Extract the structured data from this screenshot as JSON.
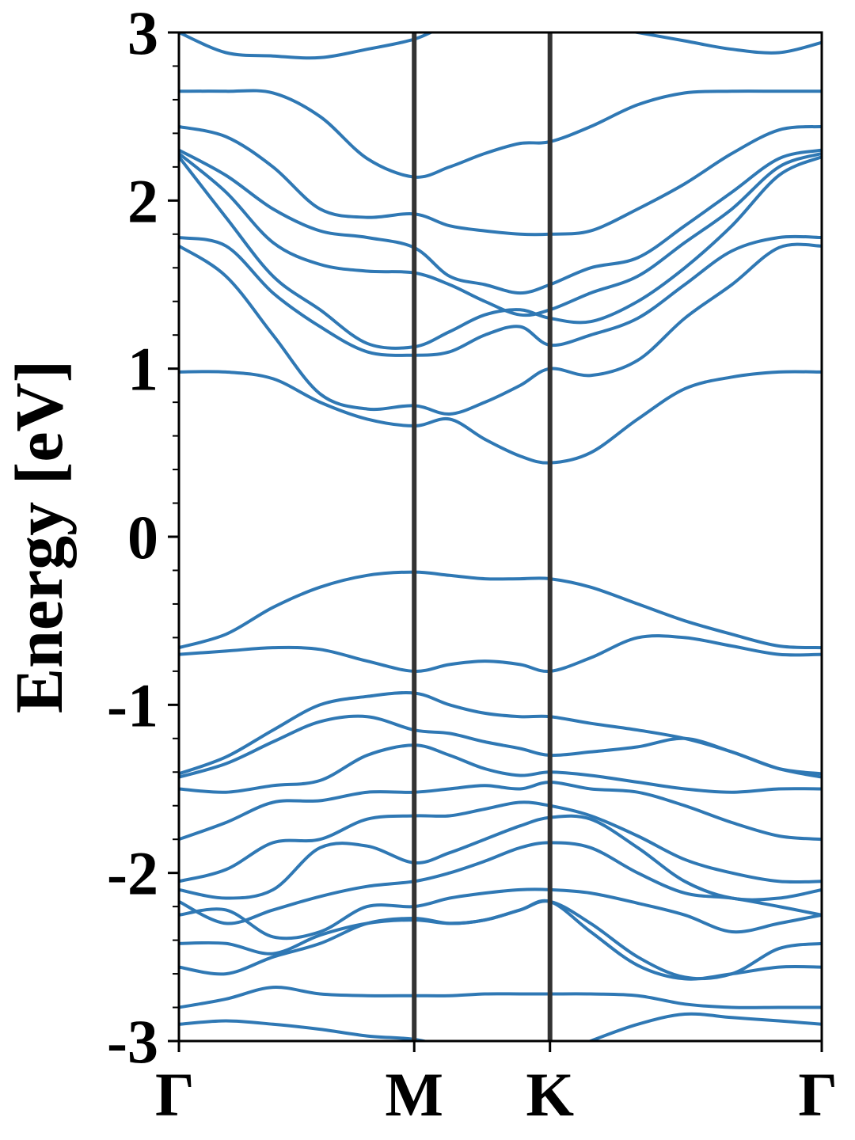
{
  "chart_data": {
    "type": "line",
    "title": "",
    "xlabel": "",
    "ylabel": "Energy [eV]",
    "ylim": [
      -3,
      3
    ],
    "yticks": [
      -3,
      -2,
      -1,
      0,
      1,
      2,
      3
    ],
    "ytick_labels": [
      "-3",
      "-2",
      "-1",
      "0",
      "1",
      "2",
      "3"
    ],
    "x_points": [
      {
        "label": "Γ",
        "x": 0.0
      },
      {
        "label": "M",
        "x": 1.0
      },
      {
        "label": "K",
        "x": 1.577
      },
      {
        "label": "Γ",
        "x": 2.732
      }
    ],
    "line_color": "#2f78b4",
    "vline_color": "#333333",
    "grid": false,
    "legend": "none",
    "x_sample": [
      0,
      0.2,
      0.4,
      0.6,
      0.8,
      1.0,
      1.15,
      1.3,
      1.45,
      1.577,
      1.75,
      1.95,
      2.15,
      2.35,
      2.55,
      2.732
    ],
    "bands": [
      [
        3.0,
        2.88,
        2.86,
        2.85,
        2.9,
        2.96,
        3.05,
        3.1,
        3.1,
        3.1,
        3.05,
        3.0,
        2.95,
        2.9,
        2.88,
        2.94
      ],
      [
        2.65,
        2.65,
        2.64,
        2.5,
        2.25,
        2.14,
        2.2,
        2.28,
        2.34,
        2.35,
        2.44,
        2.57,
        2.64,
        2.65,
        2.65,
        2.65
      ],
      [
        2.44,
        2.38,
        2.2,
        1.95,
        1.9,
        1.92,
        1.85,
        1.82,
        1.8,
        1.8,
        1.82,
        1.95,
        2.1,
        2.28,
        2.42,
        2.44
      ],
      [
        2.3,
        2.15,
        1.95,
        1.82,
        1.78,
        1.72,
        1.55,
        1.5,
        1.45,
        1.5,
        1.6,
        1.66,
        1.85,
        2.05,
        2.25,
        2.3
      ],
      [
        2.28,
        2.05,
        1.75,
        1.62,
        1.58,
        1.57,
        1.5,
        1.4,
        1.32,
        1.35,
        1.45,
        1.55,
        1.75,
        1.95,
        2.2,
        2.28
      ],
      [
        2.26,
        1.9,
        1.55,
        1.35,
        1.15,
        1.13,
        1.22,
        1.32,
        1.35,
        1.3,
        1.28,
        1.4,
        1.6,
        1.85,
        2.15,
        2.26
      ],
      [
        1.78,
        1.73,
        1.45,
        1.25,
        1.1,
        1.08,
        1.1,
        1.2,
        1.25,
        1.14,
        1.2,
        1.3,
        1.5,
        1.7,
        1.78,
        1.78
      ],
      [
        1.73,
        1.55,
        1.2,
        0.85,
        0.76,
        0.78,
        0.73,
        0.8,
        0.9,
        1.0,
        0.96,
        1.05,
        1.3,
        1.5,
        1.72,
        1.73
      ],
      [
        0.98,
        0.98,
        0.94,
        0.8,
        0.7,
        0.66,
        0.7,
        0.58,
        0.48,
        0.44,
        0.5,
        0.7,
        0.88,
        0.95,
        0.98,
        0.98
      ],
      [
        -0.66,
        -0.58,
        -0.42,
        -0.3,
        -0.23,
        -0.21,
        -0.23,
        -0.25,
        -0.25,
        -0.25,
        -0.3,
        -0.4,
        -0.5,
        -0.58,
        -0.65,
        -0.66
      ],
      [
        -0.7,
        -0.68,
        -0.66,
        -0.67,
        -0.74,
        -0.8,
        -0.76,
        -0.74,
        -0.76,
        -0.8,
        -0.72,
        -0.6,
        -0.6,
        -0.65,
        -0.7,
        -0.7
      ],
      [
        -1.41,
        -1.31,
        -1.15,
        -1.0,
        -0.95,
        -0.93,
        -1.0,
        -1.05,
        -1.07,
        -1.07,
        -1.11,
        -1.15,
        -1.2,
        -1.28,
        -1.38,
        -1.41
      ],
      [
        -1.43,
        -1.35,
        -1.22,
        -1.1,
        -1.07,
        -1.15,
        -1.17,
        -1.22,
        -1.26,
        -1.3,
        -1.28,
        -1.25,
        -1.2,
        -1.28,
        -1.38,
        -1.43
      ],
      [
        -1.5,
        -1.52,
        -1.48,
        -1.45,
        -1.3,
        -1.24,
        -1.3,
        -1.38,
        -1.42,
        -1.4,
        -1.42,
        -1.46,
        -1.5,
        -1.52,
        -1.5,
        -1.5
      ],
      [
        -1.8,
        -1.7,
        -1.58,
        -1.57,
        -1.52,
        -1.52,
        -1.5,
        -1.48,
        -1.5,
        -1.46,
        -1.5,
        -1.52,
        -1.6,
        -1.7,
        -1.78,
        -1.8
      ],
      [
        -2.05,
        -1.98,
        -1.82,
        -1.8,
        -1.68,
        -1.66,
        -1.66,
        -1.62,
        -1.58,
        -1.6,
        -1.66,
        -1.78,
        -1.92,
        -2.0,
        -2.05,
        -2.05
      ],
      [
        -2.1,
        -2.15,
        -2.1,
        -1.85,
        -1.84,
        -1.94,
        -1.88,
        -1.8,
        -1.72,
        -1.67,
        -1.68,
        -1.85,
        -2.05,
        -2.15,
        -2.15,
        -2.1
      ],
      [
        -2.17,
        -2.3,
        -2.22,
        -2.14,
        -2.08,
        -2.05,
        -2.0,
        -1.93,
        -1.85,
        -1.82,
        -1.85,
        -2.0,
        -2.12,
        -2.15,
        -2.2,
        -2.25
      ],
      [
        -2.25,
        -2.22,
        -2.38,
        -2.35,
        -2.2,
        -2.2,
        -2.15,
        -2.12,
        -2.1,
        -2.1,
        -2.12,
        -2.18,
        -2.25,
        -2.35,
        -2.3,
        -2.25
      ],
      [
        -2.42,
        -2.42,
        -2.48,
        -2.37,
        -2.3,
        -2.28,
        -2.3,
        -2.28,
        -2.22,
        -2.17,
        -2.3,
        -2.5,
        -2.62,
        -2.6,
        -2.45,
        -2.42
      ],
      [
        -2.56,
        -2.6,
        -2.5,
        -2.42,
        -2.3,
        -2.27,
        -2.3,
        -2.28,
        -2.22,
        -2.17,
        -2.35,
        -2.55,
        -2.63,
        -2.6,
        -2.56,
        -2.56
      ],
      [
        -2.8,
        -2.75,
        -2.68,
        -2.72,
        -2.73,
        -2.73,
        -2.73,
        -2.72,
        -2.72,
        -2.72,
        -2.72,
        -2.73,
        -2.78,
        -2.8,
        -2.8,
        -2.8
      ],
      [
        -2.9,
        -2.88,
        -2.9,
        -2.93,
        -2.97,
        -2.99,
        -3.04,
        -3.1,
        -3.1,
        -3.1,
        -3.0,
        -2.9,
        -2.84,
        -2.86,
        -2.88,
        -2.9
      ]
    ]
  }
}
